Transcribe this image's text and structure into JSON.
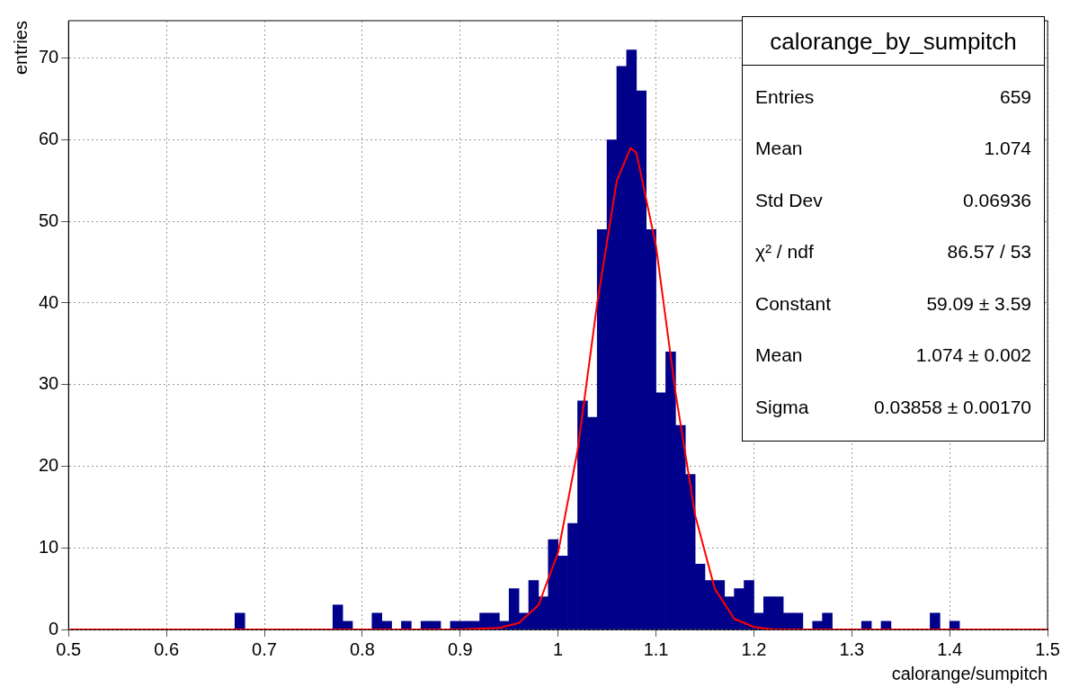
{
  "chart_data": {
    "type": "histogram",
    "title": "calorange_by_sumpitch",
    "xlabel": "calorange/sumpitch",
    "ylabel": "entries",
    "xlim": [
      0.5,
      1.5
    ],
    "xticks": [
      0.5,
      0.6,
      0.7,
      0.8,
      0.9,
      1,
      1.1,
      1.2,
      1.3,
      1.4,
      1.5
    ],
    "ylim": [
      0,
      74.6
    ],
    "yticks": [
      0,
      10,
      20,
      30,
      40,
      50,
      60,
      70
    ],
    "grid": true,
    "legend": false,
    "annotations": [
      "Entries",
      "659",
      "Mean",
      "1.074",
      "Std Dev",
      "0.06936",
      "χ² / ndf",
      "86.57 / 53",
      "Constant",
      "59.09 ± 3.59",
      "Mean",
      "1.074 ± 0.002",
      "Sigma",
      "0.03858 ± 0.00170"
    ],
    "series": [
      {
        "color": "#00008b",
        "bins": [
          0.5,
          0.51,
          0.52,
          0.53,
          0.54,
          0.55,
          0.56,
          0.57,
          0.58,
          0.59,
          0.6,
          0.61,
          0.62,
          0.63,
          0.64,
          0.65,
          0.66,
          0.67,
          0.68,
          0.69,
          0.7,
          0.71,
          0.72,
          0.73,
          0.74,
          0.75,
          0.76,
          0.77,
          0.78,
          0.79,
          0.8,
          0.81,
          0.82,
          0.83,
          0.84,
          0.85,
          0.86,
          0.87,
          0.88,
          0.89,
          0.9,
          0.91,
          0.92,
          0.93,
          0.94,
          0.95,
          0.96,
          0.97,
          0.98,
          0.99,
          1,
          1.01,
          1.02,
          1.03,
          1.04,
          1.05,
          1.06,
          1.07,
          1.08,
          1.09,
          1.1,
          1.11,
          1.12,
          1.13,
          1.14,
          1.15,
          1.16,
          1.17,
          1.18,
          1.19,
          1.2,
          1.21,
          1.22,
          1.23,
          1.24,
          1.25,
          1.26,
          1.27,
          1.28,
          1.29,
          1.3,
          1.31,
          1.32,
          1.33,
          1.34,
          1.35,
          1.36,
          1.37,
          1.38,
          1.39,
          1.4,
          1.41,
          1.42,
          1.43,
          1.44,
          1.45,
          1.46,
          1.47,
          1.48,
          1.49,
          1.5
        ],
        "values": [
          0,
          0,
          0,
          0,
          0,
          0,
          0,
          0,
          0,
          0,
          0,
          0,
          0,
          0,
          0,
          0,
          0,
          2,
          0,
          0,
          0,
          0,
          0,
          0,
          0,
          0,
          0,
          3,
          1,
          0,
          0,
          2,
          1,
          0,
          1,
          0,
          1,
          1,
          0,
          1,
          1,
          1,
          2,
          2,
          1,
          5,
          2,
          6,
          4,
          11,
          9,
          13,
          28,
          26,
          49,
          60,
          69,
          71,
          66,
          49,
          29,
          34,
          25,
          19,
          8,
          6,
          6,
          4,
          5,
          6,
          2,
          4,
          4,
          2,
          2,
          0,
          1,
          2,
          0,
          0,
          0,
          1,
          0,
          1,
          0,
          0,
          0,
          0,
          2,
          0,
          1,
          0,
          0,
          0,
          0,
          0,
          0,
          0,
          0,
          0
        ]
      },
      {
        "type": "line",
        "color": "#ff0000",
        "x": [
          0.5,
          0.9,
          0.94,
          0.96,
          0.98,
          1.0,
          1.02,
          1.04,
          1.06,
          1.074,
          1.08,
          1.1,
          1.12,
          1.14,
          1.16,
          1.18,
          1.2,
          1.22,
          1.5
        ],
        "values": [
          0,
          0,
          0.2,
          0.8,
          3,
          9.4,
          22,
          40,
          55,
          59,
          58.4,
          47,
          29,
          14,
          5,
          1.3,
          0.3,
          0,
          0
        ]
      }
    ]
  }
}
